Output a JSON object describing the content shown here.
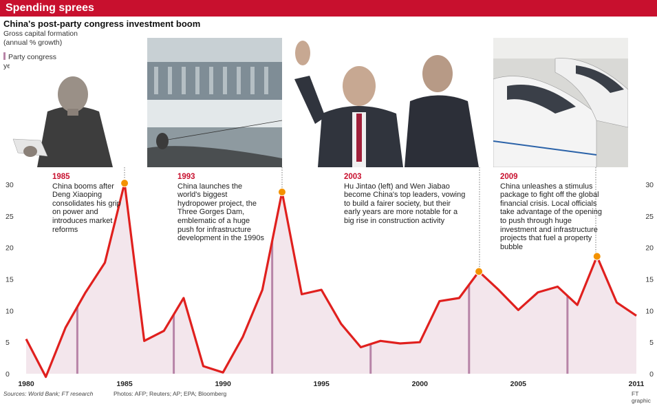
{
  "banner": {
    "title": "Spending sprees"
  },
  "header": {
    "title": "China's post-party congress investment boom",
    "subtitle": "Gross capital formation (annual % growth)",
    "legend_label": "Party congress years"
  },
  "colors": {
    "banner": "#c8102e",
    "line": "#e0201e",
    "area": "#f3e6ec",
    "congress_bar": "#b784a7",
    "marker": "#f39200",
    "annotation_year": "#c8102e"
  },
  "annotations": [
    {
      "year": "1985",
      "text": "China booms after Deng Xiaoping consolidates his grip on power and introduces market reforms",
      "photo": "deng-xiaoping-photo"
    },
    {
      "year": "1993",
      "text": "China launches the world's biggest hydropower project, the Three Gorges Dam, emblematic of a huge push for infrastructure development in the 1990s",
      "photo": "three-gorges-dam-photo"
    },
    {
      "year": "2003",
      "text": "Hu Jintao (left) and Wen Jiabao become China's top leaders, vowing to build a fairer society, but their early years are more notable for a big rise in construction activity",
      "photo": "hu-jintao-wen-jiabao-photo"
    },
    {
      "year": "2009",
      "text": "China unleashes a stimulus package to fight off the global financial crisis. Local officials take advantage of the opening to push through huge investment and infrastructure projects that fuel a property bubble",
      "photo": "high-speed-train-photo"
    }
  ],
  "footer": {
    "sources": "Sources: World Bank; FT research",
    "photos": "Photos: AFP; Reuters; AP; EPA; Bloomberg",
    "credit": "FT graphic"
  },
  "chart_data": {
    "type": "area",
    "title": "China's post-party congress investment boom",
    "ylabel": "Gross capital formation (annual % growth)",
    "xlim": [
      1980,
      2011
    ],
    "ylim": [
      0,
      30
    ],
    "x_ticks": [
      1980,
      1985,
      1990,
      1995,
      2000,
      2005,
      2011
    ],
    "y_ticks": [
      0,
      5,
      10,
      15,
      20,
      25,
      30
    ],
    "grid": false,
    "legend": "top-left",
    "series": [
      {
        "name": "Gross capital formation",
        "x": [
          1980,
          1981,
          1982,
          1983,
          1984,
          1985,
          1986,
          1987,
          1988,
          1989,
          1990,
          1991,
          1992,
          1993,
          1994,
          1995,
          1996,
          1997,
          1998,
          1999,
          2000,
          2001,
          2002,
          2003,
          2004,
          2005,
          2006,
          2007,
          2008,
          2009,
          2010,
          2011
        ],
        "y": [
          5.5,
          -0.5,
          7.3,
          12.8,
          17.6,
          30.2,
          5.2,
          6.8,
          12.0,
          1.2,
          0.2,
          5.8,
          13.3,
          28.8,
          12.6,
          13.3,
          7.9,
          4.2,
          5.2,
          4.8,
          5.0,
          11.5,
          12.0,
          16.2,
          13.3,
          10.1,
          12.9,
          13.8,
          10.9,
          18.6,
          11.3,
          9.2
        ]
      }
    ],
    "congress_years": [
      1982.6,
      1987.5,
      1992.5,
      1997.5,
      2002.5,
      2007.5
    ],
    "highlights": [
      {
        "year": 1985,
        "value": 30.2,
        "label": "1985"
      },
      {
        "year": 1993,
        "value": 28.8,
        "label": "1993"
      },
      {
        "year": 2003,
        "value": 16.2,
        "label": "2003"
      },
      {
        "year": 2009,
        "value": 18.6,
        "label": "2009"
      }
    ]
  }
}
